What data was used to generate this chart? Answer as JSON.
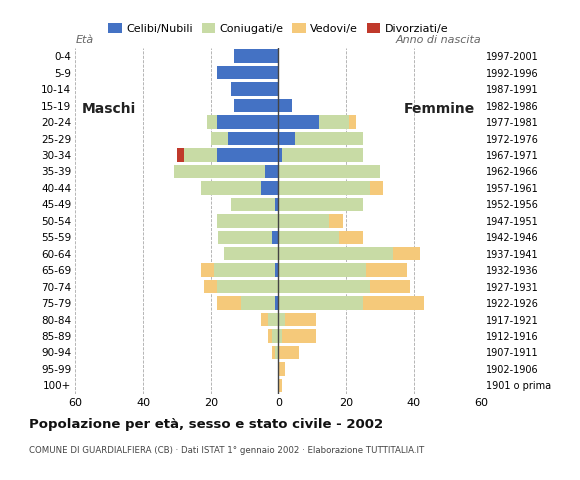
{
  "age_groups": [
    "100+",
    "95-99",
    "90-94",
    "85-89",
    "80-84",
    "75-79",
    "70-74",
    "65-69",
    "60-64",
    "55-59",
    "50-54",
    "45-49",
    "40-44",
    "35-39",
    "30-34",
    "25-29",
    "20-24",
    "15-19",
    "10-14",
    "5-9",
    "0-4"
  ],
  "birth_years": [
    "1901 o prima",
    "1902-1906",
    "1907-1911",
    "1912-1916",
    "1917-1921",
    "1922-1926",
    "1927-1931",
    "1932-1936",
    "1937-1941",
    "1942-1946",
    "1947-1951",
    "1952-1956",
    "1957-1961",
    "1962-1966",
    "1967-1971",
    "1972-1976",
    "1977-1981",
    "1982-1986",
    "1987-1991",
    "1992-1996",
    "1997-2001"
  ],
  "males": {
    "celibi": [
      0,
      0,
      0,
      0,
      0,
      1,
      0,
      1,
      0,
      2,
      0,
      1,
      5,
      4,
      18,
      15,
      18,
      13,
      14,
      18,
      13
    ],
    "coniugati": [
      0,
      0,
      1,
      2,
      3,
      10,
      18,
      18,
      16,
      16,
      18,
      13,
      18,
      27,
      10,
      5,
      3,
      0,
      0,
      0,
      0
    ],
    "vedovi": [
      0,
      0,
      1,
      1,
      2,
      7,
      4,
      4,
      0,
      0,
      0,
      0,
      0,
      0,
      0,
      0,
      0,
      0,
      0,
      0,
      0
    ],
    "divorziati": [
      0,
      0,
      0,
      0,
      0,
      0,
      0,
      0,
      0,
      0,
      0,
      0,
      0,
      0,
      2,
      0,
      0,
      0,
      0,
      0,
      0
    ]
  },
  "females": {
    "nubili": [
      0,
      0,
      0,
      0,
      0,
      0,
      0,
      0,
      0,
      0,
      0,
      0,
      0,
      0,
      1,
      5,
      12,
      4,
      0,
      0,
      0
    ],
    "coniugate": [
      0,
      0,
      0,
      1,
      2,
      25,
      27,
      26,
      34,
      18,
      15,
      25,
      27,
      30,
      24,
      20,
      9,
      0,
      0,
      0,
      0
    ],
    "vedove": [
      1,
      2,
      6,
      10,
      9,
      18,
      12,
      12,
      8,
      7,
      4,
      0,
      4,
      0,
      0,
      0,
      2,
      0,
      0,
      0,
      0
    ],
    "divorziate": [
      0,
      0,
      0,
      0,
      0,
      0,
      0,
      0,
      0,
      0,
      0,
      0,
      0,
      0,
      0,
      0,
      0,
      0,
      0,
      0,
      0
    ]
  },
  "colors": {
    "celibi_nubili": "#4472c4",
    "coniugati": "#c8dba5",
    "vedovi": "#f5c97a",
    "divorziati": "#c0392b"
  },
  "xlim": 60,
  "title": "Popolazione per età, sesso e stato civile - 2002",
  "subtitle": "COMUNE DI GUARDIALFIERA (CB) · Dati ISTAT 1° gennaio 2002 · Elaborazione TUTTITALIA.IT",
  "ylabel_left": "Età",
  "ylabel_right": "Anno di nascita",
  "label_maschi": "Maschi",
  "label_femmine": "Femmine",
  "bg_color": "#ffffff"
}
